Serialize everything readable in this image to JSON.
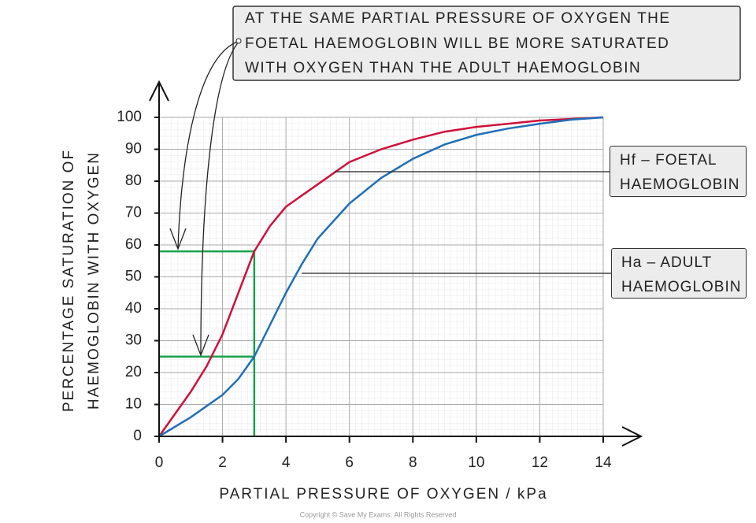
{
  "chart_data": {
    "type": "line",
    "annotation": [
      "AT THE SAME PARTIAL PRESSURE OF OXYGEN THE",
      "FOETAL HAEMOGLOBIN WILL BE MORE SATURATED",
      "WITH OXYGEN THAN THE ADULT HAEMOGLOBIN"
    ],
    "xlabel": "PARTIAL PRESSURE OF OXYGEN / kPa",
    "ylabel": [
      "PERCENTAGE SATURATION OF",
      "HAEMOGLOBIN WITH OXYGEN"
    ],
    "xlim": [
      0,
      14
    ],
    "ylim": [
      0,
      100
    ],
    "xticks": [
      0,
      2,
      4,
      6,
      8,
      10,
      12,
      14
    ],
    "yticks": [
      0,
      10,
      20,
      30,
      40,
      50,
      60,
      70,
      80,
      90,
      100
    ],
    "grid": true,
    "series": [
      {
        "name": "Hf – FOETAL HAEMOGLOBIN",
        "color": "#d0103a",
        "x": [
          0,
          0.5,
          1,
          1.5,
          2,
          2.5,
          3,
          3.5,
          4,
          5,
          6,
          7,
          8,
          9,
          10,
          11,
          12,
          13,
          14
        ],
        "values": [
          0,
          7,
          14,
          22,
          32,
          45,
          58,
          66,
          72,
          79,
          86,
          90,
          93,
          95.5,
          97,
          98,
          99,
          99.5,
          100
        ]
      },
      {
        "name": "Ha – ADULT HAEMOGLOBIN",
        "color": "#1f6fb8",
        "x": [
          0,
          1,
          2,
          2.5,
          3,
          3.5,
          4,
          4.5,
          5,
          6,
          7,
          8,
          9,
          10,
          11,
          12,
          13,
          14
        ],
        "values": [
          0,
          6,
          13,
          18,
          25,
          35,
          45,
          54,
          62,
          73,
          81,
          87,
          91.5,
          94.5,
          96.5,
          98,
          99.3,
          100
        ]
      }
    ],
    "reference_lines": {
      "color": "#1aa34a",
      "x": 3,
      "y": [
        58,
        25
      ]
    },
    "copyright": "Copyright © Save My Exams. All Rights Reserved"
  }
}
